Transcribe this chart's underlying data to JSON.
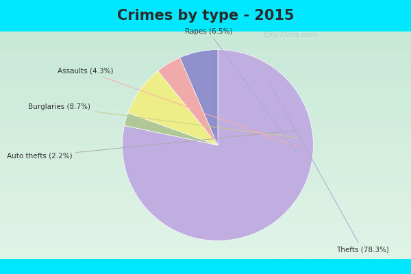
{
  "title": "Crimes by type - 2015",
  "title_fontsize": 15,
  "title_fontweight": "bold",
  "title_color": "#2a2a2a",
  "labels": [
    "Thefts",
    "Auto thefts",
    "Burglaries",
    "Assaults",
    "Rapes"
  ],
  "label_pcts": [
    "78.3%",
    "2.2%",
    "8.7%",
    "4.3%",
    "6.5%"
  ],
  "values": [
    78.3,
    2.2,
    8.7,
    4.3,
    6.5
  ],
  "colors": [
    "#c0aee0",
    "#b0c898",
    "#eeee88",
    "#f0aaaa",
    "#9090cc"
  ],
  "background_top": "#00e8ff",
  "background_bottom": "#00e8ff",
  "background_main_top": "#d0ece0",
  "background_main_bottom": "#e8f8f0",
  "startangle": 90,
  "fig_width": 6.0,
  "fig_height": 4.0,
  "watermark": "City-Data.com"
}
